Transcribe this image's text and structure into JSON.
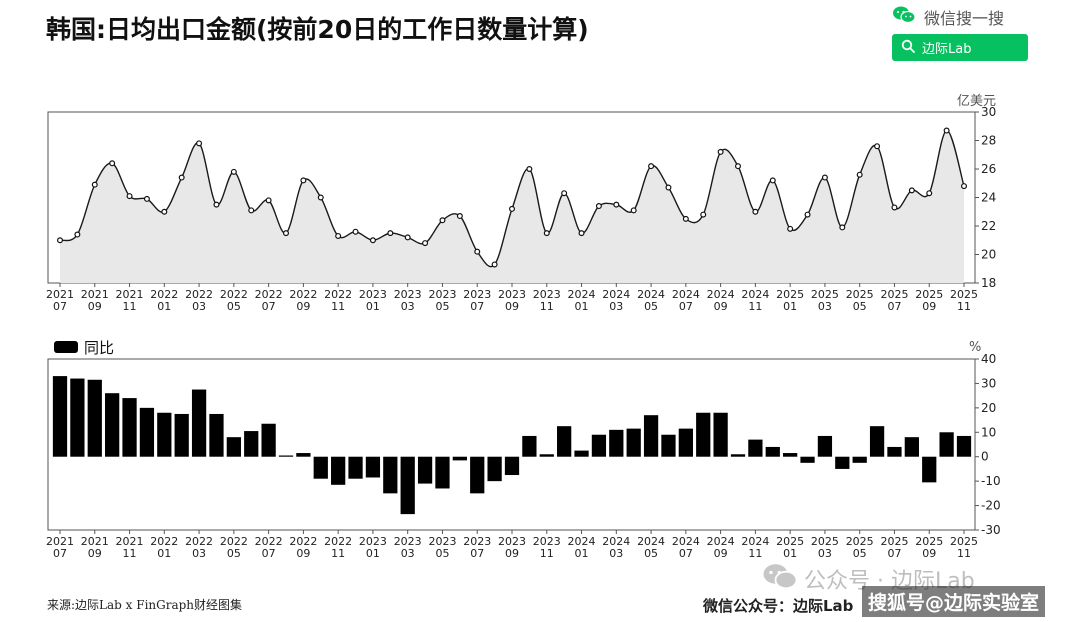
{
  "title": "韩国:日均出口金额(按前20日的工作日数量计算)",
  "wechat": {
    "search_label": "微信搜一搜",
    "search_box_text": "边际Lab"
  },
  "source": "来源:边际Lab x FinGraph财经图集",
  "watermarks": {
    "account_overlay": "公众号 · 边际Lab",
    "footer_account": "微信公众号：边际Lab",
    "sohu": "搜狐号@边际实验室"
  },
  "colors": {
    "area_fill": "#e8e8e8",
    "line": "#1a1a1a",
    "bar": "#000000",
    "wechat_green": "#07c160"
  },
  "chart_data": [
    {
      "type": "area",
      "title": "",
      "unit": "亿美元",
      "x_tick_labels": [
        [
          "2021",
          "07"
        ],
        [
          "2021",
          "09"
        ],
        [
          "2021",
          "11"
        ],
        [
          "2022",
          "01"
        ],
        [
          "2022",
          "03"
        ],
        [
          "2022",
          "05"
        ],
        [
          "2022",
          "07"
        ],
        [
          "2022",
          "09"
        ],
        [
          "2022",
          "11"
        ],
        [
          "2023",
          "01"
        ],
        [
          "2023",
          "03"
        ],
        [
          "2023",
          "05"
        ],
        [
          "2023",
          "07"
        ],
        [
          "2023",
          "09"
        ],
        [
          "2023",
          "11"
        ],
        [
          "2024",
          "01"
        ],
        [
          "2024",
          "03"
        ],
        [
          "2024",
          "05"
        ],
        [
          "2024",
          "07"
        ],
        [
          "2024",
          "09"
        ],
        [
          "2024",
          "11"
        ],
        [
          "2025",
          "01"
        ],
        [
          "2025",
          "03"
        ],
        [
          "2025",
          "05"
        ],
        [
          "2025",
          "07"
        ],
        [
          "2025",
          "09"
        ],
        [
          "2025",
          "11"
        ]
      ],
      "x": [
        "2021-07",
        "2021-08",
        "2021-09",
        "2021-10",
        "2021-11",
        "2021-12",
        "2022-01",
        "2022-02",
        "2022-03",
        "2022-04",
        "2022-05",
        "2022-06",
        "2022-07",
        "2022-08",
        "2022-09",
        "2022-10",
        "2022-11",
        "2022-12",
        "2023-01",
        "2023-02",
        "2023-03",
        "2023-04",
        "2023-05",
        "2023-06",
        "2023-07",
        "2023-08",
        "2023-09",
        "2023-10",
        "2023-11",
        "2023-12",
        "2024-01",
        "2024-02",
        "2024-03",
        "2024-04",
        "2024-05",
        "2024-06",
        "2024-07",
        "2024-08",
        "2024-09",
        "2024-10",
        "2024-11",
        "2024-12",
        "2025-01",
        "2025-02",
        "2025-03",
        "2025-04",
        "2025-05",
        "2025-06",
        "2025-07",
        "2025-08",
        "2025-09",
        "2025-10",
        "2025-11"
      ],
      "values": [
        21.0,
        21.4,
        24.9,
        26.4,
        24.1,
        23.9,
        23.0,
        25.4,
        27.8,
        23.5,
        25.8,
        23.1,
        23.8,
        21.5,
        25.2,
        24.0,
        21.3,
        21.6,
        21.0,
        21.5,
        21.2,
        20.8,
        22.4,
        22.7,
        20.2,
        19.3,
        23.2,
        26.0,
        21.5,
        24.3,
        21.5,
        23.4,
        23.5,
        23.1,
        26.2,
        24.7,
        22.5,
        22.8,
        27.2,
        26.2,
        23.0,
        25.2,
        21.8,
        22.8,
        25.4,
        21.9,
        25.6,
        27.6,
        23.3,
        24.5,
        24.3,
        28.7,
        24.8
      ],
      "y_ticks": [
        18,
        20,
        22,
        24,
        26,
        28,
        30
      ],
      "ylim": [
        18,
        30
      ],
      "grid": false
    },
    {
      "type": "bar",
      "legend": "同比",
      "legend_position": "top-left",
      "unit": "%",
      "x": [
        "2021-07",
        "2021-08",
        "2021-09",
        "2021-10",
        "2021-11",
        "2021-12",
        "2022-01",
        "2022-02",
        "2022-03",
        "2022-04",
        "2022-05",
        "2022-06",
        "2022-07",
        "2022-08",
        "2022-09",
        "2022-10",
        "2022-11",
        "2022-12",
        "2023-01",
        "2023-02",
        "2023-03",
        "2023-04",
        "2023-05",
        "2023-06",
        "2023-07",
        "2023-08",
        "2023-09",
        "2023-10",
        "2023-11",
        "2023-12",
        "2024-01",
        "2024-02",
        "2024-03",
        "2024-04",
        "2024-05",
        "2024-06",
        "2024-07",
        "2024-08",
        "2024-09",
        "2024-10",
        "2024-11",
        "2024-12",
        "2025-01",
        "2025-02",
        "2025-03",
        "2025-04",
        "2025-05",
        "2025-06",
        "2025-07",
        "2025-08",
        "2025-09",
        "2025-10",
        "2025-11"
      ],
      "values": [
        33,
        32,
        31.5,
        26,
        24,
        20,
        18,
        17.5,
        27.5,
        17.5,
        8,
        10.5,
        13.5,
        0.5,
        1.5,
        -9,
        -11.5,
        -9,
        -8.5,
        -15,
        -23.5,
        -11,
        -13,
        -1.5,
        -15,
        -10,
        -7.5,
        8.5,
        1,
        12.5,
        2.5,
        9,
        11,
        11.5,
        17,
        9,
        11.5,
        18,
        18,
        1,
        7,
        4,
        1.5,
        -2.5,
        8.5,
        -5,
        -2.5,
        12.5,
        4,
        8,
        -10.5,
        10,
        8.5
      ],
      "y_ticks": [
        -30,
        -20,
        -10,
        0,
        10,
        20,
        30,
        40
      ],
      "ylim": [
        -30,
        40
      ],
      "grid": false
    }
  ]
}
